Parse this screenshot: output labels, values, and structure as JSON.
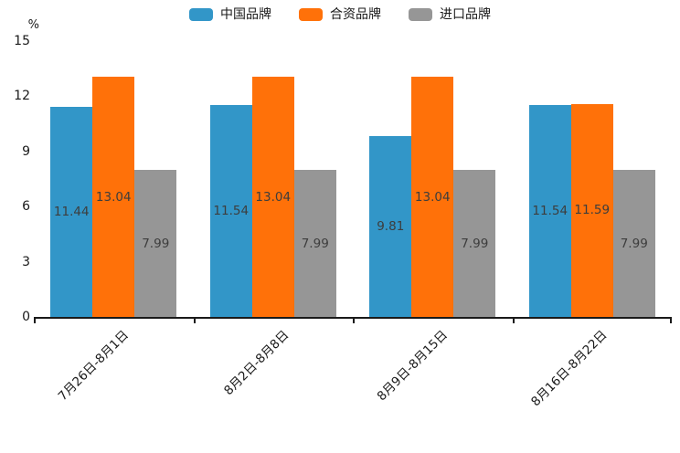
{
  "chart_data": {
    "type": "bar",
    "title": "",
    "unit_label": "%",
    "categories": [
      "7月26日-8月1日",
      "8月2日-8月8日",
      "8月9日-8月15日",
      "8月16日-8月22日"
    ],
    "series": [
      {
        "name": "中国品牌",
        "color": "#3296C8",
        "values": [
          11.44,
          11.54,
          9.81,
          11.54
        ]
      },
      {
        "name": "合资品牌",
        "color": "#FF7109",
        "values": [
          13.04,
          13.04,
          13.04,
          11.59
        ]
      },
      {
        "name": "进口品牌",
        "color": "#969696",
        "values": [
          7.99,
          7.99,
          7.99,
          7.99
        ]
      }
    ],
    "yticks": [
      0,
      3,
      6,
      9,
      12,
      15
    ],
    "ylim": [
      0,
      15
    ],
    "grid": false,
    "legend_position": "top",
    "value_labels": "inside-center",
    "value_label_color": "#3d3d3d",
    "axis_color": "#1a1a1a",
    "background_color": "#ffffff"
  }
}
